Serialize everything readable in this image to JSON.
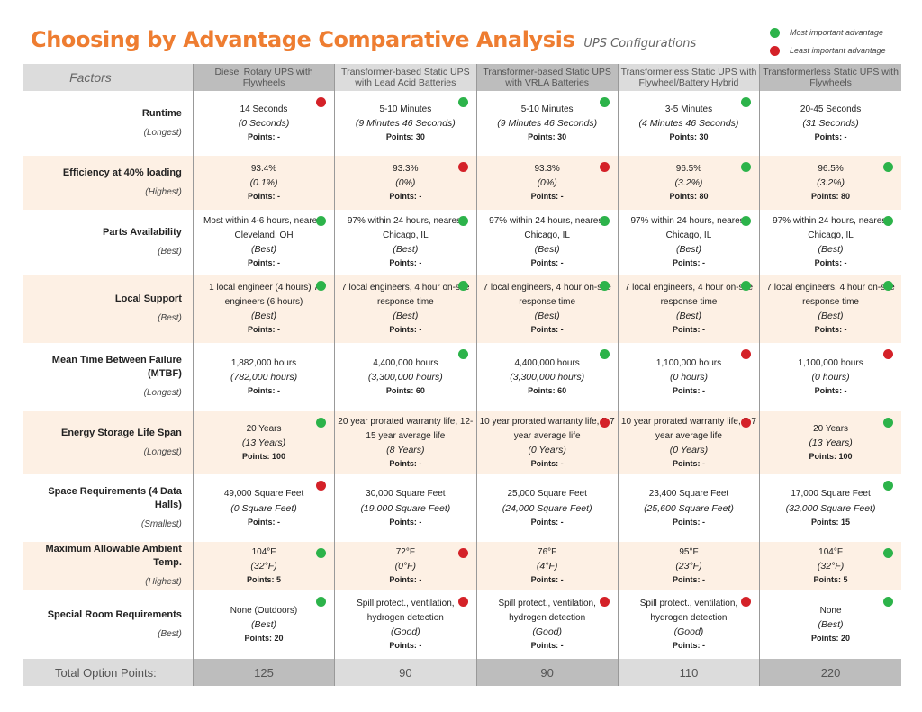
{
  "title": "Choosing by Advantage Comparative Analysis",
  "subtitle": "UPS Configurations",
  "legend": [
    {
      "label": "Most important advantage",
      "color": "#2cb34a"
    },
    {
      "label": "Least important advantage",
      "color": "#d42128"
    }
  ],
  "header": {
    "factors_label": "Factors",
    "options": [
      {
        "name": "Diesel Rotary UPS with Flywheels"
      },
      {
        "name": "Transformer-based Static UPS with Lead Acid Batteries"
      },
      {
        "name": "Transformer-based Static UPS with VRLA Batteries"
      },
      {
        "name": "Transformerless Static UPS with Flywheel/Battery Hybrid"
      },
      {
        "name": "Transformerless Static UPS with Flywheels"
      }
    ]
  },
  "rows": [
    {
      "factor": "Runtime",
      "criterion": "(Longest)",
      "height": 72,
      "shaded": false,
      "cells": [
        {
          "value": "14 Seconds",
          "detail": "(0 Seconds)",
          "points": "Points: -",
          "marker": "red"
        },
        {
          "value": "5-10 Minutes",
          "detail": "(9 Minutes 46 Seconds)",
          "points": "Points: 30",
          "marker": "green"
        },
        {
          "value": "5-10 Minutes",
          "detail": "(9 Minutes 46 Seconds)",
          "points": "Points: 30",
          "marker": "green"
        },
        {
          "value": "3-5 Minutes",
          "detail": "(4 Minutes 46 Seconds)",
          "points": "Points: 30",
          "marker": "green"
        },
        {
          "value": "20-45 Seconds",
          "detail": "(31 Seconds)",
          "points": "Points: -",
          "marker": ""
        }
      ]
    },
    {
      "factor": "Efficiency at 40% loading",
      "criterion": "(Highest)",
      "height": 60,
      "shaded": true,
      "cells": [
        {
          "value": "93.4%",
          "detail": "(0.1%)",
          "points": "Points: -",
          "marker": ""
        },
        {
          "value": "93.3%",
          "detail": "(0%)",
          "points": "Points: -",
          "marker": "red"
        },
        {
          "value": "93.3%",
          "detail": "(0%)",
          "points": "Points: -",
          "marker": "red"
        },
        {
          "value": "96.5%",
          "detail": "(3.2%)",
          "points": "Points: 80",
          "marker": "green"
        },
        {
          "value": "96.5%",
          "detail": "(3.2%)",
          "points": "Points: 80",
          "marker": "green"
        }
      ]
    },
    {
      "factor": "Parts Availability",
      "criterion": "(Best)",
      "height": 72,
      "shaded": false,
      "cells": [
        {
          "value": "Most within 4-6 hours, nearest Cleveland, OH",
          "detail": "(Best)",
          "points": "Points: -",
          "marker": "green"
        },
        {
          "value": "97% within 24 hours, nearest Chicago, IL",
          "detail": "(Best)",
          "points": "Points: -",
          "marker": "green"
        },
        {
          "value": "97% within 24 hours, nearest Chicago, IL",
          "detail": "(Best)",
          "points": "Points: -",
          "marker": "green"
        },
        {
          "value": "97% within 24 hours, nearest Chicago, IL",
          "detail": "(Best)",
          "points": "Points: -",
          "marker": "green"
        },
        {
          "value": "97% within 24 hours, nearest Chicago, IL",
          "detail": "(Best)",
          "points": "Points: -",
          "marker": "green"
        }
      ]
    },
    {
      "factor": "Local Support",
      "criterion": "(Best)",
      "height": 76,
      "shaded": true,
      "cells": [
        {
          "value": "1 local engineer (4 hours) 7 engineers (6 hours)",
          "detail": "(Best)",
          "points": "Points: -",
          "marker": "green"
        },
        {
          "value": "7 local engineers, 4 hour on-site response time",
          "detail": "(Best)",
          "points": "Points: -",
          "marker": "green"
        },
        {
          "value": "7 local engineers, 4 hour on-site response time",
          "detail": "(Best)",
          "points": "Points: -",
          "marker": "green"
        },
        {
          "value": "7 local engineers, 4 hour on-site response time",
          "detail": "(Best)",
          "points": "Points: -",
          "marker": "green"
        },
        {
          "value": "7 local engineers, 4 hour on-site response time",
          "detail": "(Best)",
          "points": "Points: -",
          "marker": "green"
        }
      ]
    },
    {
      "factor": "Mean Time Between Failure (MTBF)",
      "criterion": "(Longest)",
      "height": 76,
      "shaded": false,
      "cells": [
        {
          "value": "1,882,000 hours",
          "detail": "(782,000 hours)",
          "points": "Points: -",
          "marker": ""
        },
        {
          "value": "4,400,000 hours",
          "detail": "(3,300,000 hours)",
          "points": "Points: 60",
          "marker": "green"
        },
        {
          "value": "4,400,000 hours",
          "detail": "(3,300,000 hours)",
          "points": "Points: 60",
          "marker": "green"
        },
        {
          "value": "1,100,000 hours",
          "detail": "(0 hours)",
          "points": "Points: -",
          "marker": "red"
        },
        {
          "value": "1,100,000 hours",
          "detail": "(0 hours)",
          "points": "Points: -",
          "marker": "red"
        }
      ]
    },
    {
      "factor": "Energy Storage Life Span",
      "criterion": "(Longest)",
      "height": 70,
      "shaded": true,
      "cells": [
        {
          "value": "20 Years",
          "detail": "(13 Years)",
          "points": "Points: 100",
          "marker": "green"
        },
        {
          "value": "20 year prorated warranty life, 12-15 year average life",
          "detail": "(8 Years)",
          "points": "Points: -",
          "marker": ""
        },
        {
          "value": "10 year prorated warranty life, 5-7 year average life",
          "detail": "(0 Years)",
          "points": "Points: -",
          "marker": "red"
        },
        {
          "value": "10 year prorated warranty life, 5-7 year average life",
          "detail": "(0 Years)",
          "points": "Points: -",
          "marker": "red"
        },
        {
          "value": "20 Years",
          "detail": "(13 Years)",
          "points": "Points: 100",
          "marker": "green"
        }
      ]
    },
    {
      "factor": "Space Requirements (4 Data Halls)",
      "criterion": "(Smallest)",
      "height": 75,
      "shaded": false,
      "cells": [
        {
          "value": "49,000 Square Feet",
          "detail": "(0 Square Feet)",
          "points": "Points: -",
          "marker": "red"
        },
        {
          "value": "30,000 Square Feet",
          "detail": "(19,000 Square Feet)",
          "points": "Points: -",
          "marker": ""
        },
        {
          "value": "25,000 Square Feet",
          "detail": "(24,000 Square Feet)",
          "points": "Points: -",
          "marker": ""
        },
        {
          "value": "23,400 Square Feet",
          "detail": "(25,600 Square Feet)",
          "points": "Points: -",
          "marker": ""
        },
        {
          "value": "17,000 Square Feet",
          "detail": "(32,000 Square Feet)",
          "points": "Points: 15",
          "marker": "green"
        }
      ]
    },
    {
      "factor": "Maximum Allowable Ambient Temp.",
      "criterion": "(Highest)",
      "height": 54,
      "shaded": true,
      "cells": [
        {
          "value": "104°F",
          "detail": "(32°F)",
          "points": "Points: 5",
          "marker": "green"
        },
        {
          "value": "72°F",
          "detail": "(0°F)",
          "points": "Points: -",
          "marker": "red"
        },
        {
          "value": "76°F",
          "detail": "(4°F)",
          "points": "Points: -",
          "marker": ""
        },
        {
          "value": "95°F",
          "detail": "(23°F)",
          "points": "Points: -",
          "marker": ""
        },
        {
          "value": "104°F",
          "detail": "(32°F)",
          "points": "Points: 5",
          "marker": "green"
        }
      ]
    },
    {
      "factor": "Special Room Requirements",
      "criterion": "(Best)",
      "height": 76,
      "shaded": false,
      "cells": [
        {
          "value": "None (Outdoors)",
          "detail": "(Best)",
          "points": "Points: 20",
          "marker": "green"
        },
        {
          "value": "Spill protect., ventilation, hydrogen detection",
          "detail": "(Good)",
          "points": "Points: -",
          "marker": "red"
        },
        {
          "value": "Spill protect., ventilation, hydrogen detection",
          "detail": "(Good)",
          "points": "Points: -",
          "marker": "red"
        },
        {
          "value": "Spill protect., ventilation, hydrogen detection",
          "detail": "(Good)",
          "points": "Points: -",
          "marker": "red"
        },
        {
          "value": "None",
          "detail": "(Best)",
          "points": "Points: 20",
          "marker": "green"
        }
      ]
    }
  ],
  "totals": {
    "label": "Total Option Points:",
    "values": [
      "125",
      "90",
      "90",
      "110",
      "220"
    ]
  }
}
